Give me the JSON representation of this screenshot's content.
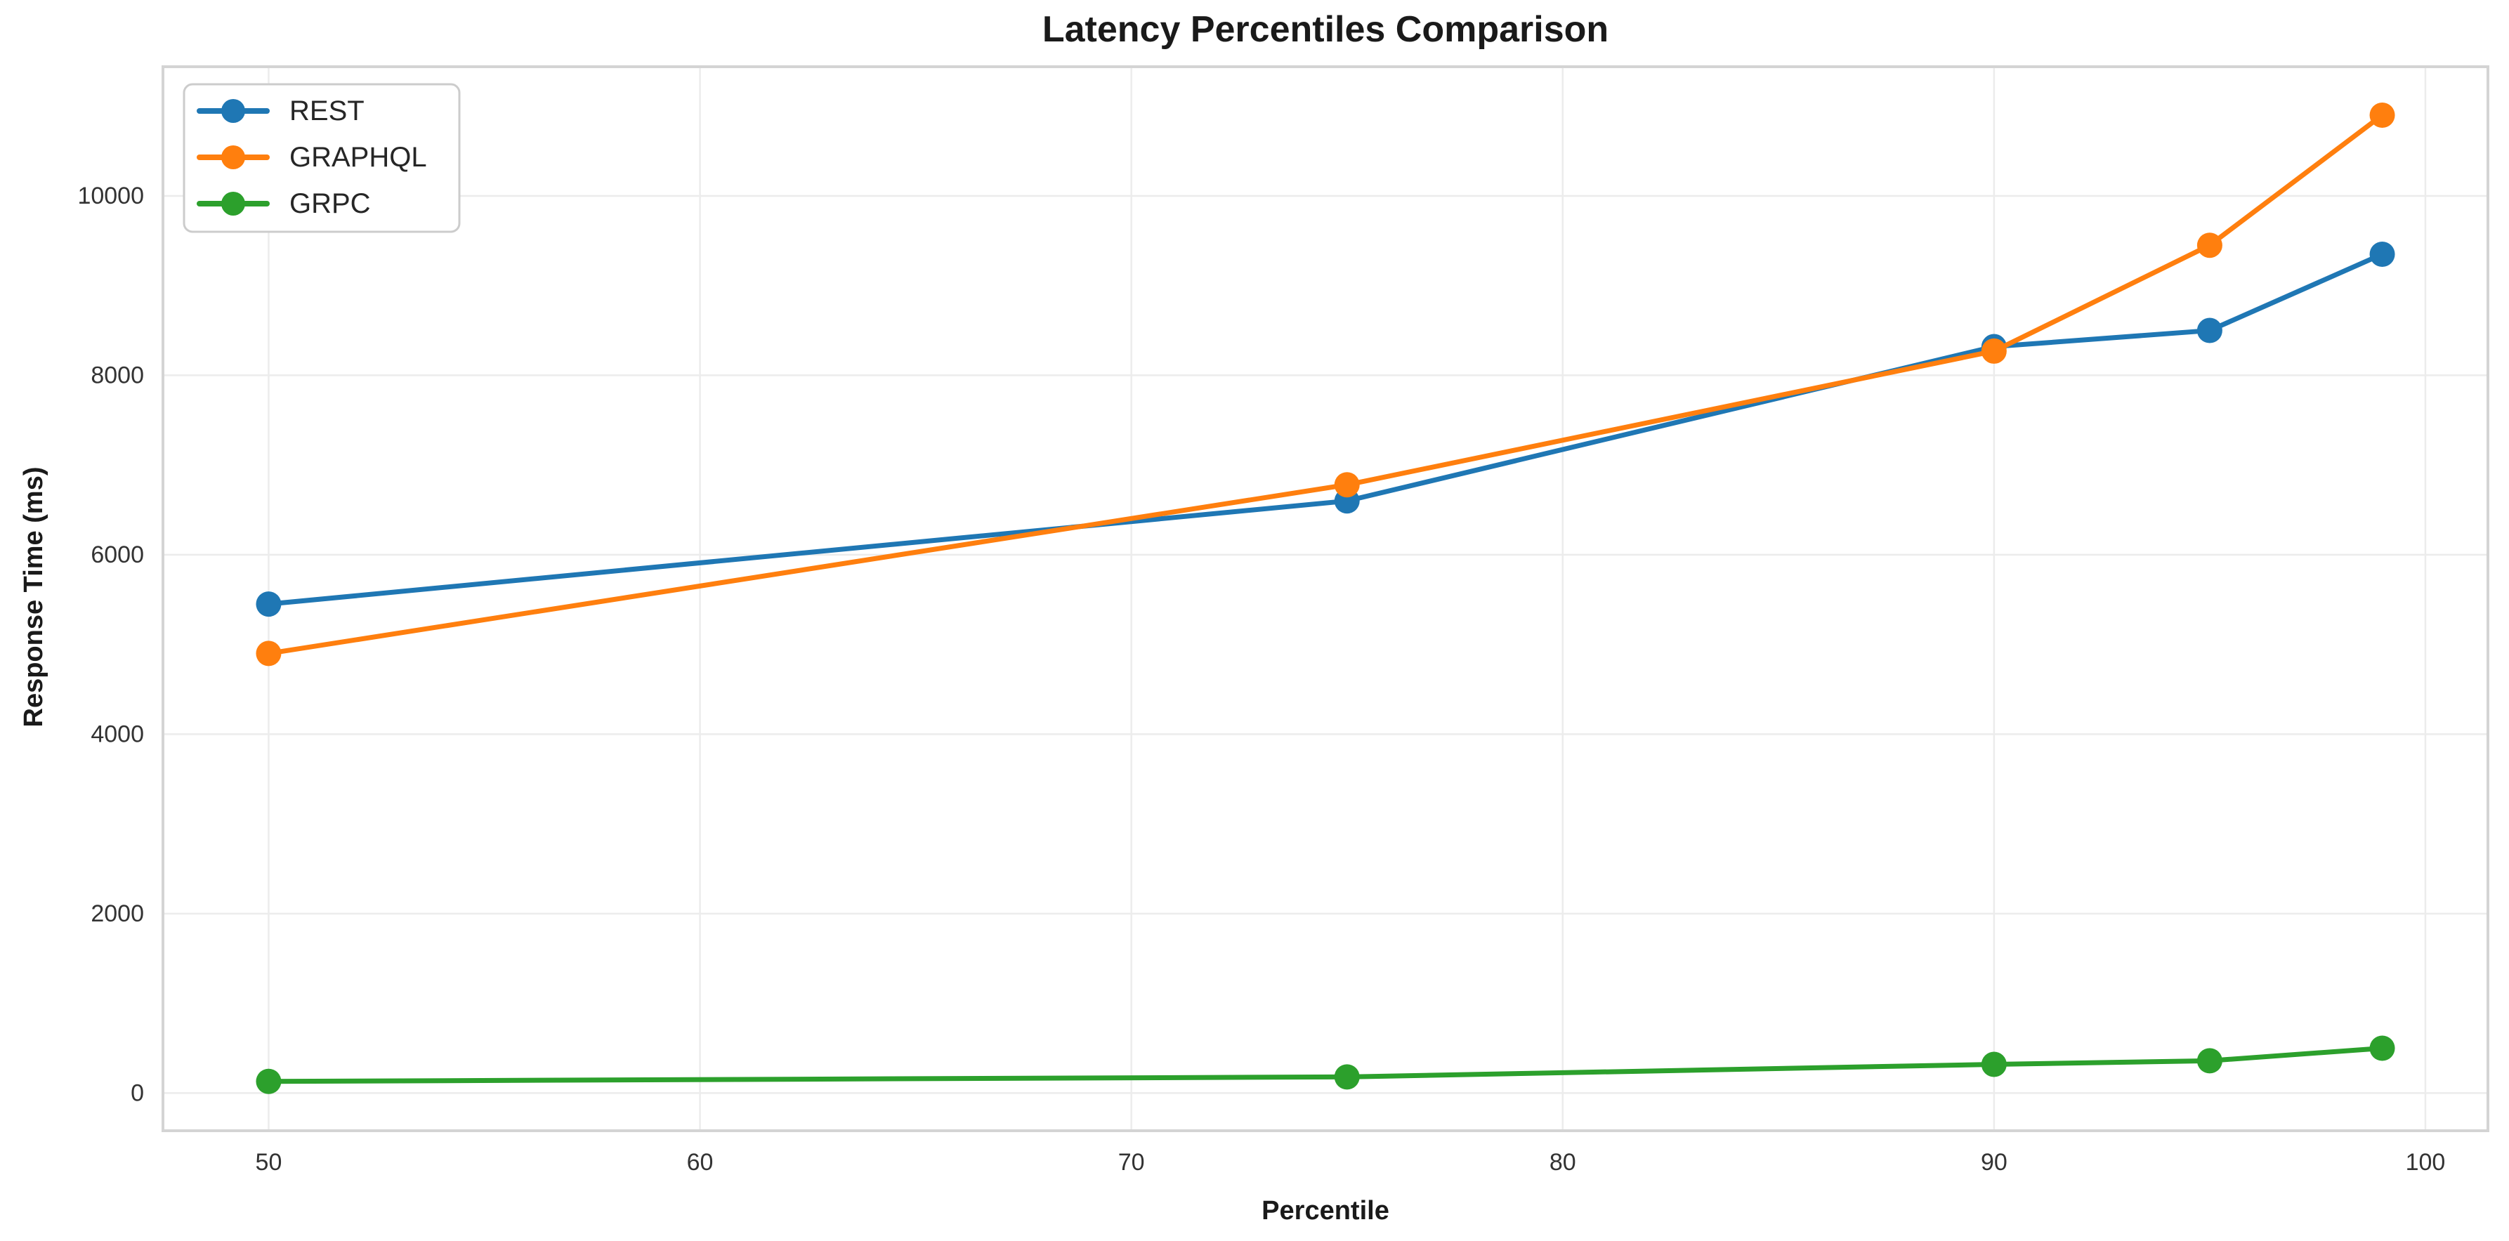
{
  "figure": {
    "background_color": "#ffffff"
  },
  "chart_data": {
    "type": "line",
    "title": "Latency Percentiles Comparison",
    "xlabel": "Percentile",
    "ylabel": "Response Time (ms)",
    "x": [
      50,
      75,
      90,
      95,
      99
    ],
    "series": [
      {
        "name": "REST",
        "color": "#1f77b4",
        "values": [
          5450,
          6600,
          8320,
          8500,
          9350
        ]
      },
      {
        "name": "GRAPHQL",
        "color": "#ff7f0e",
        "values": [
          4900,
          6780,
          8270,
          9450,
          10900
        ]
      },
      {
        "name": "GRPC",
        "color": "#2ca02c",
        "values": [
          130,
          180,
          320,
          360,
          500
        ]
      }
    ],
    "xticks": [
      50,
      60,
      70,
      80,
      90,
      100
    ],
    "yticks": [
      0,
      2000,
      4000,
      6000,
      8000,
      10000
    ],
    "xlim": [
      47.55,
      101.45
    ],
    "ylim": [
      -420,
      11440
    ],
    "grid": true,
    "legend_position": "upper-left",
    "styles": {
      "grid_color": "#ececec",
      "spine_color": "#d4d4d4",
      "legend_border_color": "#cccccc",
      "legend_background": "#ffffff",
      "title_color": "#1a1a1a",
      "tick_color": "#333333"
    }
  }
}
